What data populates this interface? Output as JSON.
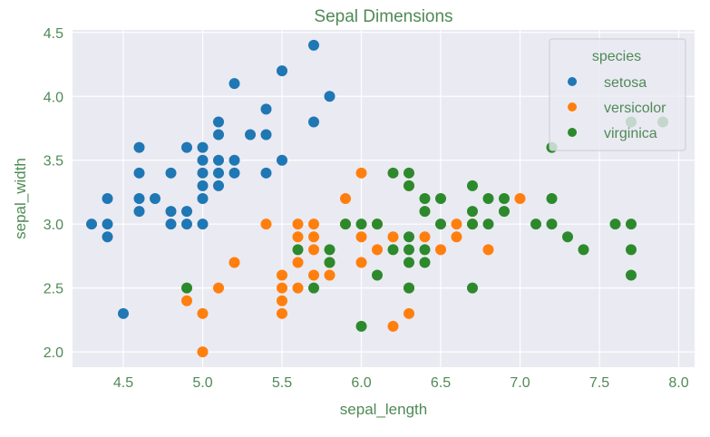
{
  "chart_data": {
    "type": "scatter",
    "title": "Sepal Dimensions",
    "xlabel": "sepal_length",
    "ylabel": "sepal_width",
    "xlim": [
      4.18,
      8.1
    ],
    "ylim": [
      1.88,
      4.52
    ],
    "xticks": [
      "4.5",
      "5.0",
      "5.5",
      "6.0",
      "6.5",
      "7.0",
      "7.5",
      "8.0"
    ],
    "yticks": [
      "2.0",
      "2.5",
      "3.0",
      "3.5",
      "4.0",
      "4.5"
    ],
    "grid": true,
    "legend": {
      "title": "species",
      "placement": "top-right"
    },
    "text_color": "#4f8a55",
    "background": "#eaeaf2",
    "series": [
      {
        "name": "setosa",
        "color": "#1f77b4",
        "points": [
          [
            4.3,
            3.0
          ],
          [
            4.4,
            2.9
          ],
          [
            4.4,
            3.0
          ],
          [
            4.4,
            3.2
          ],
          [
            4.5,
            2.3
          ],
          [
            4.6,
            3.1
          ],
          [
            4.6,
            3.2
          ],
          [
            4.6,
            3.4
          ],
          [
            4.6,
            3.6
          ],
          [
            4.7,
            3.2
          ],
          [
            4.8,
            3.0
          ],
          [
            4.8,
            3.1
          ],
          [
            4.8,
            3.4
          ],
          [
            4.9,
            3.0
          ],
          [
            4.9,
            3.1
          ],
          [
            4.9,
            3.6
          ],
          [
            5.0,
            3.0
          ],
          [
            5.0,
            3.2
          ],
          [
            5.0,
            3.3
          ],
          [
            5.0,
            3.4
          ],
          [
            5.0,
            3.5
          ],
          [
            5.0,
            3.6
          ],
          [
            5.1,
            3.3
          ],
          [
            5.1,
            3.4
          ],
          [
            5.1,
            3.5
          ],
          [
            5.1,
            3.7
          ],
          [
            5.1,
            3.8
          ],
          [
            5.2,
            3.4
          ],
          [
            5.2,
            3.5
          ],
          [
            5.2,
            4.1
          ],
          [
            5.3,
            3.7
          ],
          [
            5.4,
            3.4
          ],
          [
            5.4,
            3.7
          ],
          [
            5.4,
            3.9
          ],
          [
            5.5,
            3.5
          ],
          [
            5.5,
            4.2
          ],
          [
            5.7,
            3.8
          ],
          [
            5.7,
            4.4
          ],
          [
            5.8,
            4.0
          ]
        ]
      },
      {
        "name": "versicolor",
        "color": "#ff7f0e",
        "points": [
          [
            4.9,
            2.4
          ],
          [
            5.0,
            2.0
          ],
          [
            5.0,
            2.3
          ],
          [
            5.1,
            2.5
          ],
          [
            5.2,
            2.7
          ],
          [
            5.4,
            3.0
          ],
          [
            5.5,
            2.3
          ],
          [
            5.5,
            2.4
          ],
          [
            5.5,
            2.5
          ],
          [
            5.5,
            2.6
          ],
          [
            5.6,
            2.5
          ],
          [
            5.6,
            2.7
          ],
          [
            5.6,
            2.9
          ],
          [
            5.6,
            3.0
          ],
          [
            5.7,
            2.6
          ],
          [
            5.7,
            2.8
          ],
          [
            5.7,
            2.9
          ],
          [
            5.7,
            3.0
          ],
          [
            5.8,
            2.6
          ],
          [
            5.8,
            2.7
          ],
          [
            5.9,
            3.0
          ],
          [
            5.9,
            3.2
          ],
          [
            6.0,
            2.7
          ],
          [
            6.0,
            2.9
          ],
          [
            6.0,
            3.4
          ],
          [
            6.1,
            2.8
          ],
          [
            6.1,
            3.0
          ],
          [
            6.2,
            2.2
          ],
          [
            6.2,
            2.9
          ],
          [
            6.3,
            2.3
          ],
          [
            6.3,
            2.5
          ],
          [
            6.3,
            3.3
          ],
          [
            6.4,
            2.9
          ],
          [
            6.5,
            2.8
          ],
          [
            6.6,
            2.9
          ],
          [
            6.6,
            3.0
          ],
          [
            6.7,
            3.0
          ],
          [
            6.8,
            2.8
          ],
          [
            7.0,
            3.2
          ]
        ]
      },
      {
        "name": "virginica",
        "color": "#2c8a2c",
        "points": [
          [
            4.9,
            2.5
          ],
          [
            5.6,
            2.8
          ],
          [
            5.7,
            2.5
          ],
          [
            5.8,
            2.7
          ],
          [
            5.8,
            2.8
          ],
          [
            5.9,
            3.0
          ],
          [
            6.0,
            2.2
          ],
          [
            6.0,
            3.0
          ],
          [
            6.1,
            2.6
          ],
          [
            6.1,
            3.0
          ],
          [
            6.2,
            2.8
          ],
          [
            6.2,
            3.4
          ],
          [
            6.3,
            2.5
          ],
          [
            6.3,
            2.7
          ],
          [
            6.3,
            2.8
          ],
          [
            6.3,
            2.9
          ],
          [
            6.3,
            3.3
          ],
          [
            6.3,
            3.4
          ],
          [
            6.4,
            2.7
          ],
          [
            6.4,
            2.8
          ],
          [
            6.4,
            3.1
          ],
          [
            6.4,
            3.2
          ],
          [
            6.5,
            3.0
          ],
          [
            6.5,
            3.2
          ],
          [
            6.7,
            2.5
          ],
          [
            6.7,
            3.0
          ],
          [
            6.7,
            3.1
          ],
          [
            6.7,
            3.3
          ],
          [
            6.8,
            3.0
          ],
          [
            6.8,
            3.2
          ],
          [
            6.9,
            3.1
          ],
          [
            6.9,
            3.2
          ],
          [
            7.1,
            3.0
          ],
          [
            7.2,
            3.0
          ],
          [
            7.2,
            3.2
          ],
          [
            7.2,
            3.6
          ],
          [
            7.3,
            2.9
          ],
          [
            7.4,
            2.8
          ],
          [
            7.6,
            3.0
          ],
          [
            7.7,
            2.6
          ],
          [
            7.7,
            2.8
          ],
          [
            7.7,
            3.0
          ],
          [
            7.7,
            3.8
          ],
          [
            7.9,
            3.8
          ]
        ]
      }
    ]
  }
}
